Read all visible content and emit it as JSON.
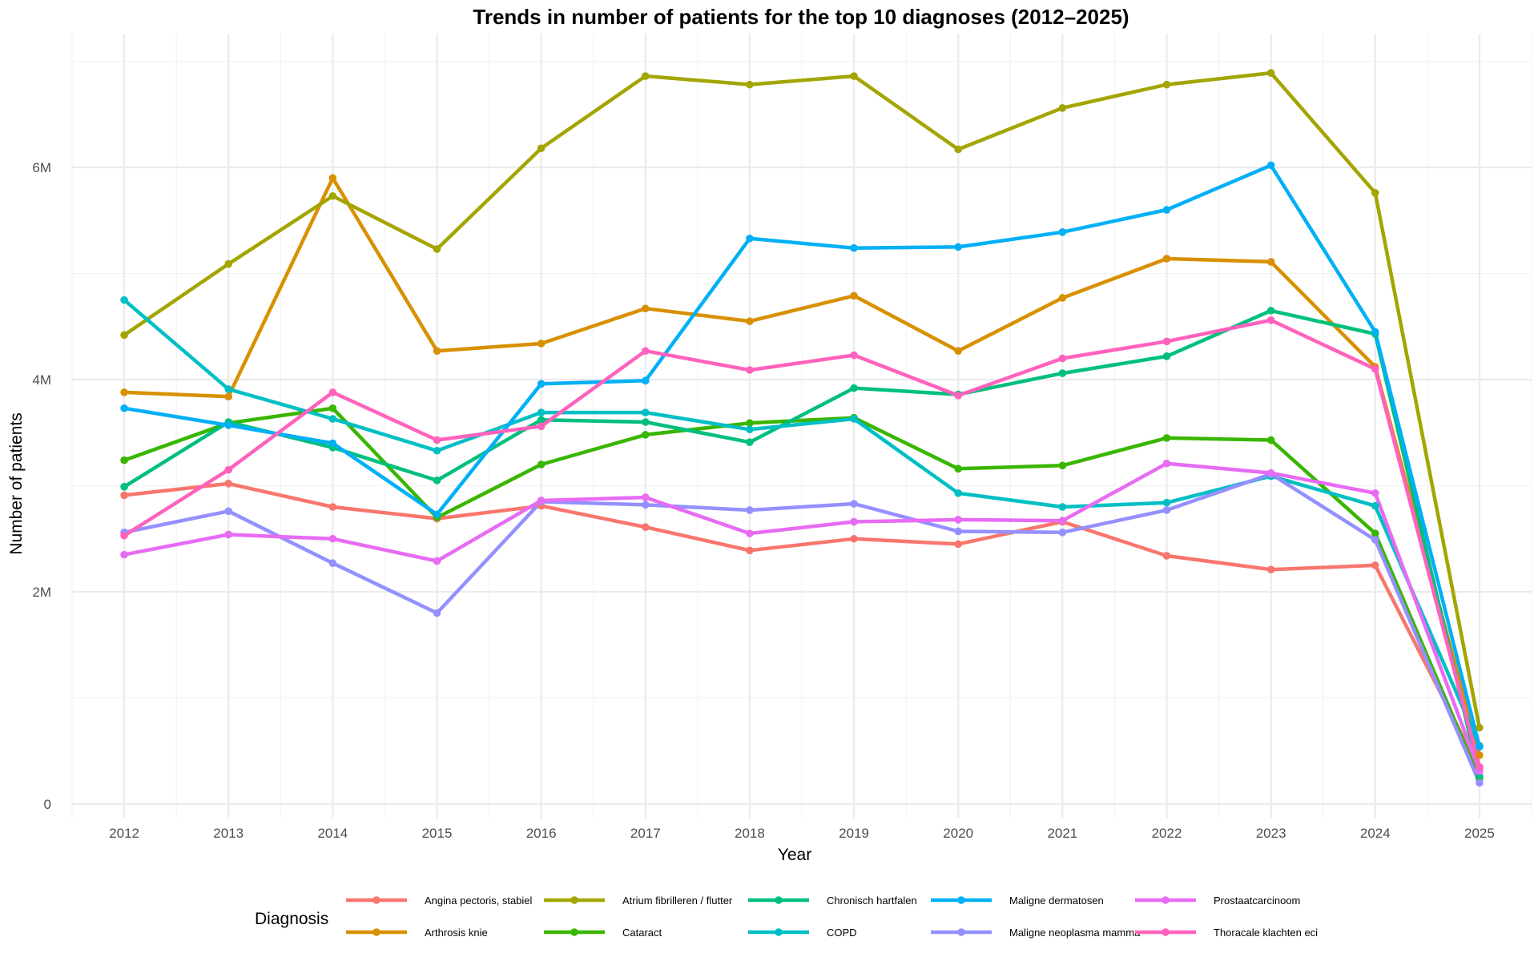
{
  "chart_data": {
    "type": "line",
    "title": "Trends in number of patients for the top 10 diagnoses (2012–2025)",
    "xlabel": "Year",
    "ylabel": "Number of patients",
    "x": [
      2012,
      2013,
      2014,
      2015,
      2016,
      2017,
      2018,
      2019,
      2020,
      2021,
      2022,
      2023,
      2024,
      2025
    ],
    "x_tick_labels": [
      "2012",
      "2013",
      "2014",
      "2015",
      "2016",
      "2017",
      "2018",
      "2019",
      "2020",
      "2021",
      "2022",
      "2023",
      "2024",
      "2025"
    ],
    "xlim": [
      2011.5,
      2025.5
    ],
    "ylim": [
      0,
      7000000
    ],
    "y_ticks": [
      0,
      2000000,
      4000000,
      6000000
    ],
    "y_tick_labels": [
      "0",
      "2M",
      "4M",
      "6M"
    ],
    "grid": true,
    "legend_title": "Diagnosis",
    "legend_position": "bottom",
    "series": [
      {
        "name": "Angina pectoris, stabiel",
        "color": "#F8766D",
        "values": [
          2910000,
          3020000,
          2800000,
          2690000,
          2810000,
          2610000,
          2390000,
          2500000,
          2450000,
          2660000,
          2340000,
          2210000,
          2250000,
          330000
        ]
      },
      {
        "name": "Arthrosis knie",
        "color": "#D89000",
        "values": [
          3880000,
          3840000,
          5900000,
          4270000,
          4340000,
          4670000,
          4550000,
          4790000,
          4270000,
          4770000,
          5140000,
          5110000,
          4120000,
          460000
        ]
      },
      {
        "name": "Atrium fibrilleren / flutter",
        "color": "#A3A500",
        "values": [
          4420000,
          5090000,
          5730000,
          5230000,
          6180000,
          6860000,
          6780000,
          6860000,
          6170000,
          6560000,
          6780000,
          6890000,
          5760000,
          720000
        ]
      },
      {
        "name": "Cataract",
        "color": "#39B600",
        "values": [
          3240000,
          3590000,
          3730000,
          2700000,
          3200000,
          3480000,
          3590000,
          3640000,
          3160000,
          3190000,
          3450000,
          3430000,
          2550000,
          240000
        ]
      },
      {
        "name": "Chronisch hartfalen",
        "color": "#00BF7D",
        "values": [
          2990000,
          3600000,
          3360000,
          3050000,
          3620000,
          3600000,
          3410000,
          3920000,
          3860000,
          4060000,
          4220000,
          4650000,
          4430000,
          260000
        ]
      },
      {
        "name": "COPD",
        "color": "#00BFC4",
        "values": [
          4750000,
          3910000,
          3630000,
          3330000,
          3690000,
          3690000,
          3530000,
          3630000,
          2930000,
          2800000,
          2840000,
          3090000,
          2810000,
          550000
        ]
      },
      {
        "name": "Maligne dermatosen",
        "color": "#00B0F6",
        "values": [
          3730000,
          3570000,
          3400000,
          2730000,
          3960000,
          3990000,
          5330000,
          5240000,
          5250000,
          5390000,
          5600000,
          6020000,
          4450000,
          540000
        ]
      },
      {
        "name": "Maligne neoplasma mamma",
        "color": "#9590FF",
        "values": [
          2560000,
          2760000,
          2270000,
          1800000,
          2850000,
          2820000,
          2770000,
          2830000,
          2570000,
          2560000,
          2770000,
          3110000,
          2490000,
          200000
        ]
      },
      {
        "name": "Prostaatcarcinoom",
        "color": "#E76BF3",
        "values": [
          2350000,
          2540000,
          2500000,
          2290000,
          2860000,
          2890000,
          2550000,
          2660000,
          2680000,
          2670000,
          3210000,
          3120000,
          2930000,
          310000
        ]
      },
      {
        "name": "Thoracale klachten eci",
        "color": "#FF62BC",
        "values": [
          2530000,
          3150000,
          3880000,
          3430000,
          3560000,
          4270000,
          4090000,
          4230000,
          3850000,
          4200000,
          4360000,
          4560000,
          4100000,
          350000
        ]
      }
    ]
  }
}
